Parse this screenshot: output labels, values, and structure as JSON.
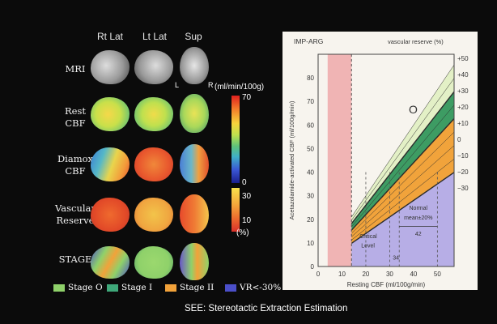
{
  "columns": [
    "Rt Lat",
    "Lt Lat",
    "Sup"
  ],
  "rows": [
    {
      "label": [
        "MRI"
      ]
    },
    {
      "label": [
        "Rest",
        "CBF"
      ]
    },
    {
      "label": [
        "Diamox",
        "CBF"
      ]
    },
    {
      "label": [
        "Vascular",
        "Reserve"
      ]
    },
    {
      "label": [
        "STAGE"
      ]
    }
  ],
  "orientation": {
    "left": "L",
    "right": "R"
  },
  "colorbar": {
    "unit": "(ml/min/100g)",
    "top_value": "70",
    "bottom_value": "0",
    "reserve_top": "30",
    "reserve_bottom": "10",
    "reserve_unit": "(%)"
  },
  "legend": [
    {
      "label": "Stage O",
      "color": "#8fd16a"
    },
    {
      "label": "Stage I",
      "color": "#3fa87a"
    },
    {
      "label": "Stage II",
      "color": "#f2a23a"
    },
    {
      "label": "VR<-30%",
      "color": "#4b4fc9"
    }
  ],
  "footer": "SEE: Stereotactic Extraction Estimation",
  "chart_data": {
    "type": "area",
    "title": "IMP-ARG",
    "right_axis_title": "vascular reserve (%)",
    "xlabel": "Resting CBF (ml/100g/min)",
    "ylabel": "Acetazolamide-activated CBF (ml/100g/min)",
    "xlim": [
      0,
      57
    ],
    "ylim": [
      0,
      90
    ],
    "x_ticks": [
      "0",
      "10",
      "20",
      "30",
      "40",
      "50"
    ],
    "y_ticks": [
      "0",
      "10",
      "20",
      "30",
      "40",
      "50",
      "60",
      "70",
      "80"
    ],
    "reserve_ticks": [
      "+50",
      "+40",
      "+30",
      "+20",
      "+10",
      "0",
      "−10",
      "−20",
      "−30"
    ],
    "reserve_lines": [
      50,
      40,
      30,
      20,
      10,
      0,
      -10,
      -20,
      -30
    ],
    "critical_x": 14,
    "normal_band": [
      34,
      50
    ],
    "regions": [
      {
        "name": "O",
        "from_reserve": 30,
        "to_reserve": 50,
        "color": "#e3f0c6"
      },
      {
        "name": "I",
        "from_reserve": 10,
        "to_reserve": 30,
        "color": "#3d9c63"
      },
      {
        "name": "II",
        "from_reserve": -30,
        "to_reserve": 10,
        "color": "#f1a33b"
      },
      {
        "name": "III",
        "from_reserve": -100,
        "to_reserve": -30,
        "color": "#b7aee6"
      }
    ],
    "region_label": "O",
    "annotations": {
      "critical": [
        "Critical",
        "Level"
      ],
      "normal": [
        "Normal",
        "mean±20%"
      ],
      "normal_value": "42",
      "mark_34": "34"
    }
  }
}
